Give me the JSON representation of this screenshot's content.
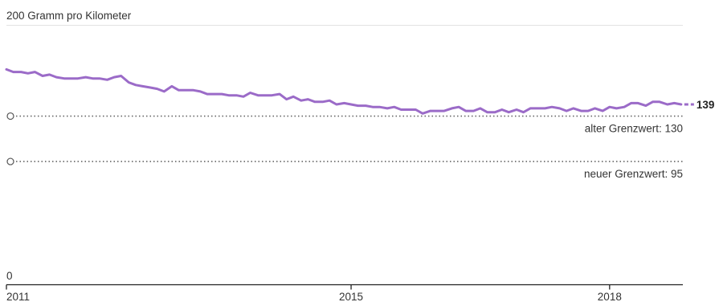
{
  "chart_data": {
    "type": "line",
    "y_axis_label_top": "200 Gramm pro Kilometer",
    "y_axis_label_bottom": "0",
    "ylim": [
      0,
      200
    ],
    "xlim": [
      2011.0,
      2018.85
    ],
    "x_ticks": [
      {
        "value": 2011,
        "label": "2011"
      },
      {
        "value": 2015,
        "label": "2015"
      },
      {
        "value": 2018,
        "label": "2018"
      }
    ],
    "grid": false,
    "series": [
      {
        "color": "#9b6bc8",
        "end_label": "139",
        "points": [
          [
            2011.0,
            166
          ],
          [
            2011.08,
            164
          ],
          [
            2011.17,
            164
          ],
          [
            2011.25,
            163
          ],
          [
            2011.33,
            164
          ],
          [
            2011.42,
            161
          ],
          [
            2011.5,
            162
          ],
          [
            2011.58,
            160
          ],
          [
            2011.67,
            159
          ],
          [
            2011.75,
            159
          ],
          [
            2011.83,
            159
          ],
          [
            2011.92,
            160
          ],
          [
            2012.0,
            159
          ],
          [
            2012.08,
            159
          ],
          [
            2012.17,
            158
          ],
          [
            2012.25,
            160
          ],
          [
            2012.33,
            161
          ],
          [
            2012.42,
            156
          ],
          [
            2012.5,
            154
          ],
          [
            2012.58,
            153
          ],
          [
            2012.67,
            152
          ],
          [
            2012.75,
            151
          ],
          [
            2012.83,
            149
          ],
          [
            2012.92,
            153
          ],
          [
            2013.0,
            150
          ],
          [
            2013.08,
            150
          ],
          [
            2013.17,
            150
          ],
          [
            2013.25,
            149
          ],
          [
            2013.33,
            147
          ],
          [
            2013.42,
            147
          ],
          [
            2013.5,
            147
          ],
          [
            2013.58,
            146
          ],
          [
            2013.67,
            146
          ],
          [
            2013.75,
            145
          ],
          [
            2013.83,
            148
          ],
          [
            2013.92,
            146
          ],
          [
            2014.0,
            146
          ],
          [
            2014.08,
            146
          ],
          [
            2014.17,
            147
          ],
          [
            2014.25,
            143
          ],
          [
            2014.33,
            145
          ],
          [
            2014.42,
            142
          ],
          [
            2014.5,
            143
          ],
          [
            2014.58,
            141
          ],
          [
            2014.67,
            141
          ],
          [
            2014.75,
            142
          ],
          [
            2014.83,
            139
          ],
          [
            2014.92,
            140
          ],
          [
            2015.0,
            139
          ],
          [
            2015.08,
            138
          ],
          [
            2015.17,
            138
          ],
          [
            2015.25,
            137
          ],
          [
            2015.33,
            137
          ],
          [
            2015.42,
            136
          ],
          [
            2015.5,
            137
          ],
          [
            2015.58,
            135
          ],
          [
            2015.67,
            135
          ],
          [
            2015.75,
            135
          ],
          [
            2015.83,
            132
          ],
          [
            2015.92,
            134
          ],
          [
            2016.0,
            134
          ],
          [
            2016.08,
            134
          ],
          [
            2016.17,
            136
          ],
          [
            2016.25,
            137
          ],
          [
            2016.33,
            134
          ],
          [
            2016.42,
            134
          ],
          [
            2016.5,
            136
          ],
          [
            2016.58,
            133
          ],
          [
            2016.67,
            133
          ],
          [
            2016.75,
            135
          ],
          [
            2016.83,
            133
          ],
          [
            2016.92,
            135
          ],
          [
            2017.0,
            133
          ],
          [
            2017.08,
            136
          ],
          [
            2017.17,
            136
          ],
          [
            2017.25,
            136
          ],
          [
            2017.33,
            137
          ],
          [
            2017.42,
            136
          ],
          [
            2017.5,
            134
          ],
          [
            2017.58,
            136
          ],
          [
            2017.67,
            134
          ],
          [
            2017.75,
            134
          ],
          [
            2017.83,
            136
          ],
          [
            2017.92,
            134
          ],
          [
            2018.0,
            137
          ],
          [
            2018.08,
            136
          ],
          [
            2018.17,
            137
          ],
          [
            2018.25,
            140
          ],
          [
            2018.33,
            140
          ],
          [
            2018.42,
            138
          ],
          [
            2018.5,
            141
          ],
          [
            2018.58,
            141
          ],
          [
            2018.67,
            139
          ],
          [
            2018.75,
            140
          ],
          [
            2018.83,
            139
          ]
        ]
      }
    ],
    "reference_lines": [
      {
        "value": 130,
        "label": "alter Grenzwert: 130"
      },
      {
        "value": 95,
        "label": "neuer Grenzwert: 95"
      }
    ]
  }
}
